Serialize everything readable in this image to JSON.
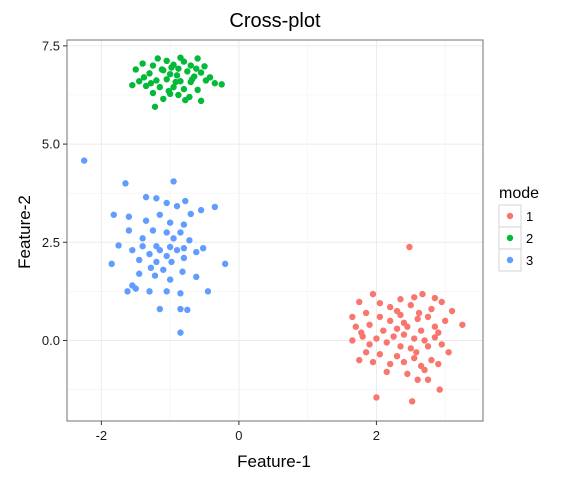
{
  "chart_data": {
    "type": "scatter",
    "title": "Cross-plot",
    "xlabel": "Feature-1",
    "ylabel": "Feature-2",
    "xlim": [
      -2.5,
      3.55
    ],
    "ylim": [
      -2.05,
      7.65
    ],
    "xticks": [
      -2,
      0,
      2
    ],
    "xtick_labels": [
      "-2",
      "0",
      "2"
    ],
    "yticks": [
      0.0,
      2.5,
      5.0,
      7.5
    ],
    "ytick_labels": [
      "0.0",
      "2.5",
      "5.0",
      "7.5"
    ],
    "grid": true,
    "legend": {
      "title": "mode",
      "position": "right"
    },
    "series": [
      {
        "name": "1",
        "color": "#F8766D",
        "points": [
          [
            2.48,
            2.38
          ],
          [
            1.75,
            0.98
          ],
          [
            2.67,
            1.18
          ],
          [
            2.85,
            1.08
          ],
          [
            2.95,
            0.98
          ],
          [
            2.55,
            1.1
          ],
          [
            2.35,
            1.05
          ],
          [
            1.95,
            1.18
          ],
          [
            2.2,
            0.85
          ],
          [
            2.5,
            0.9
          ],
          [
            2.8,
            0.8
          ],
          [
            3.1,
            0.75
          ],
          [
            1.65,
            0.6
          ],
          [
            1.85,
            0.7
          ],
          [
            2.05,
            0.6
          ],
          [
            2.35,
            0.65
          ],
          [
            2.6,
            0.55
          ],
          [
            2.75,
            0.6
          ],
          [
            3.0,
            0.5
          ],
          [
            3.25,
            0.4
          ],
          [
            1.7,
            0.35
          ],
          [
            1.9,
            0.4
          ],
          [
            2.1,
            0.25
          ],
          [
            2.3,
            0.3
          ],
          [
            2.45,
            0.35
          ],
          [
            2.65,
            0.25
          ],
          [
            2.9,
            0.2
          ],
          [
            1.8,
            0.1
          ],
          [
            2.0,
            0.05
          ],
          [
            2.25,
            0.1
          ],
          [
            2.4,
            0.15
          ],
          [
            2.55,
            0.05
          ],
          [
            2.7,
            0.0
          ],
          [
            2.85,
            0.08
          ],
          [
            1.65,
            0.0
          ],
          [
            1.9,
            -0.1
          ],
          [
            2.15,
            -0.05
          ],
          [
            2.35,
            -0.15
          ],
          [
            2.5,
            -0.2
          ],
          [
            2.75,
            -0.15
          ],
          [
            2.95,
            -0.1
          ],
          [
            1.85,
            -0.3
          ],
          [
            2.05,
            -0.35
          ],
          [
            2.3,
            -0.4
          ],
          [
            2.55,
            -0.45
          ],
          [
            2.8,
            -0.5
          ],
          [
            3.05,
            -0.3
          ],
          [
            1.95,
            -0.55
          ],
          [
            2.2,
            -0.6
          ],
          [
            2.4,
            -0.55
          ],
          [
            2.65,
            -0.65
          ],
          [
            2.9,
            -0.6
          ],
          [
            2.15,
            -0.8
          ],
          [
            2.45,
            -0.85
          ],
          [
            2.7,
            -0.75
          ],
          [
            2.6,
            -1.0
          ],
          [
            2.75,
            -1.0
          ],
          [
            2.92,
            -1.25
          ],
          [
            2.0,
            -1.45
          ],
          [
            2.52,
            -1.55
          ],
          [
            1.75,
            -0.5
          ],
          [
            2.3,
            0.75
          ],
          [
            2.05,
            0.95
          ],
          [
            2.62,
            0.7
          ],
          [
            2.4,
            0.45
          ],
          [
            2.2,
            0.5
          ],
          [
            2.85,
            0.35
          ],
          [
            2.58,
            -0.3
          ],
          [
            1.78,
            0.2
          ]
        ]
      },
      {
        "name": "2",
        "color": "#00BA38",
        "points": [
          [
            -1.18,
            7.18
          ],
          [
            -1.05,
            7.12
          ],
          [
            -0.85,
            7.2
          ],
          [
            -0.6,
            7.18
          ],
          [
            -0.8,
            7.1
          ],
          [
            -1.4,
            7.05
          ],
          [
            -1.25,
            7.0
          ],
          [
            -0.95,
            7.02
          ],
          [
            -0.7,
            7.0
          ],
          [
            -0.5,
            6.98
          ],
          [
            -1.5,
            6.9
          ],
          [
            -1.1,
            6.88
          ],
          [
            -0.88,
            6.92
          ],
          [
            -0.75,
            6.85
          ],
          [
            -0.55,
            6.82
          ],
          [
            -1.3,
            6.8
          ],
          [
            -1.0,
            6.78
          ],
          [
            -0.9,
            6.75
          ],
          [
            -0.65,
            6.72
          ],
          [
            -0.42,
            6.7
          ],
          [
            -1.45,
            6.6
          ],
          [
            -1.2,
            6.62
          ],
          [
            -1.05,
            6.65
          ],
          [
            -0.85,
            6.6
          ],
          [
            -0.7,
            6.58
          ],
          [
            -0.35,
            6.55
          ],
          [
            -0.25,
            6.52
          ],
          [
            -1.55,
            6.5
          ],
          [
            -1.35,
            6.48
          ],
          [
            -1.15,
            6.45
          ],
          [
            -0.95,
            6.45
          ],
          [
            -0.8,
            6.4
          ],
          [
            -0.6,
            6.38
          ],
          [
            -1.25,
            6.3
          ],
          [
            -1.0,
            6.28
          ],
          [
            -0.88,
            6.25
          ],
          [
            -0.72,
            6.2
          ],
          [
            -1.1,
            6.15
          ],
          [
            -0.78,
            6.12
          ],
          [
            -0.55,
            6.1
          ],
          [
            -1.22,
            5.95
          ],
          [
            -1.12,
            6.9
          ],
          [
            -0.98,
            6.95
          ],
          [
            -0.62,
            6.92
          ],
          [
            -1.38,
            6.7
          ],
          [
            -0.92,
            6.58
          ],
          [
            -0.48,
            6.62
          ],
          [
            -1.28,
            6.55
          ],
          [
            -1.02,
            6.35
          ],
          [
            -0.68,
            6.65
          ]
        ]
      },
      {
        "name": "3",
        "color": "#619CFF",
        "points": [
          [
            -2.25,
            4.58
          ],
          [
            -0.95,
            4.05
          ],
          [
            -1.65,
            4.0
          ],
          [
            -1.35,
            3.65
          ],
          [
            -1.2,
            3.62
          ],
          [
            -0.78,
            3.55
          ],
          [
            -1.05,
            3.5
          ],
          [
            -0.9,
            3.42
          ],
          [
            -0.35,
            3.4
          ],
          [
            -0.55,
            3.32
          ],
          [
            -1.82,
            3.2
          ],
          [
            -1.6,
            3.15
          ],
          [
            -1.15,
            3.2
          ],
          [
            -0.7,
            3.22
          ],
          [
            -1.35,
            3.05
          ],
          [
            -1.0,
            3.0
          ],
          [
            -0.8,
            2.95
          ],
          [
            -1.6,
            2.8
          ],
          [
            -1.25,
            2.8
          ],
          [
            -1.05,
            2.75
          ],
          [
            -0.85,
            2.75
          ],
          [
            -1.4,
            2.6
          ],
          [
            -0.95,
            2.6
          ],
          [
            -0.72,
            2.55
          ],
          [
            -1.75,
            2.42
          ],
          [
            -1.4,
            2.4
          ],
          [
            -1.2,
            2.4
          ],
          [
            -1.0,
            2.38
          ],
          [
            -0.8,
            2.35
          ],
          [
            -0.52,
            2.35
          ],
          [
            -1.55,
            2.3
          ],
          [
            -1.15,
            2.3
          ],
          [
            -0.9,
            2.3
          ],
          [
            -0.62,
            2.25
          ],
          [
            -1.3,
            2.2
          ],
          [
            -1.05,
            2.15
          ],
          [
            -0.8,
            2.1
          ],
          [
            -1.45,
            2.05
          ],
          [
            -1.2,
            2.0
          ],
          [
            -0.98,
            2.0
          ],
          [
            -1.85,
            1.95
          ],
          [
            -0.2,
            1.95
          ],
          [
            -1.28,
            1.85
          ],
          [
            -1.1,
            1.8
          ],
          [
            -0.82,
            1.75
          ],
          [
            -1.45,
            1.7
          ],
          [
            -1.22,
            1.65
          ],
          [
            -0.62,
            1.62
          ],
          [
            -1.0,
            1.55
          ],
          [
            -1.55,
            1.4
          ],
          [
            -1.62,
            1.25
          ],
          [
            -1.3,
            1.25
          ],
          [
            -1.05,
            1.25
          ],
          [
            -0.85,
            1.2
          ],
          [
            -0.45,
            1.25
          ],
          [
            -1.15,
            0.8
          ],
          [
            -0.85,
            0.8
          ],
          [
            -0.75,
            0.78
          ],
          [
            -0.85,
            0.2
          ],
          [
            -1.5,
            1.32
          ]
        ]
      }
    ]
  }
}
